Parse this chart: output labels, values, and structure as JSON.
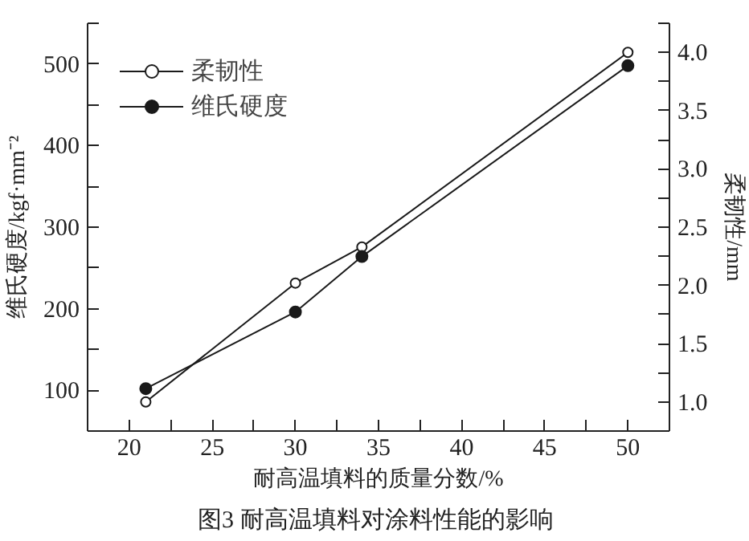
{
  "chart_data": {
    "type": "line",
    "title": "图3  耐高温填料对涂料性能的影响",
    "xlabel": "耐高温填料的质量分数/%",
    "ylabel": "维氏硬度/kgf·mm⁻²",
    "y2label": "柔韧性/mm",
    "x": [
      21,
      30,
      34,
      50
    ],
    "series": [
      {
        "name": "柔韧性",
        "color": "#1a1a1a",
        "axis": "y2",
        "marker": "circle_open",
        "values": [
          1.0,
          2.02,
          2.33,
          4.0
        ]
      },
      {
        "name": "维氏硬度",
        "color": "#1a1a1a",
        "marker": "circle",
        "values": [
          102,
          196,
          264,
          498
        ]
      }
    ],
    "xlim": [
      17.5,
      52.5
    ],
    "xticks": [
      20,
      {
        "value": 22.5,
        "label": null
      },
      25,
      {
        "value": 27.5,
        "label": null
      },
      30,
      {
        "value": 32.5,
        "label": null
      },
      35,
      {
        "value": 37.5,
        "label": null
      },
      40,
      {
        "value": 42.5,
        "label": null
      },
      45,
      {
        "value": 47.5,
        "label": null
      },
      50
    ],
    "ylim": [
      50,
      550
    ],
    "yticks": [
      100,
      {
        "value": 150,
        "label": null
      },
      200,
      {
        "value": 250,
        "label": null
      },
      300,
      {
        "value": 350,
        "label": null
      },
      400,
      {
        "value": 450,
        "label": null
      },
      500,
      {
        "value": 550,
        "label": null
      }
    ],
    "y2lim": [
      0.75,
      4.25
    ],
    "y2ticks": [
      {
        "value": 1.0,
        "label": "1.0"
      },
      {
        "value": 1.25,
        "label": null
      },
      {
        "value": 1.5,
        "label": "1.5"
      },
      {
        "value": 1.75,
        "label": null
      },
      {
        "value": 2.0,
        "label": "2.0"
      },
      {
        "value": 2.25,
        "label": null
      },
      {
        "value": 2.5,
        "label": "2.5"
      },
      {
        "value": 2.75,
        "label": null
      },
      {
        "value": 3.0,
        "label": "3.0"
      },
      {
        "value": 3.25,
        "label": null
      },
      {
        "value": 3.5,
        "label": "3.5"
      },
      {
        "value": 3.75,
        "label": null
      },
      {
        "value": 4.0,
        "label": "4.0"
      },
      {
        "value": 4.25,
        "label": null
      }
    ],
    "legend": "top left",
    "grid": false,
    "line_style": "solid"
  }
}
